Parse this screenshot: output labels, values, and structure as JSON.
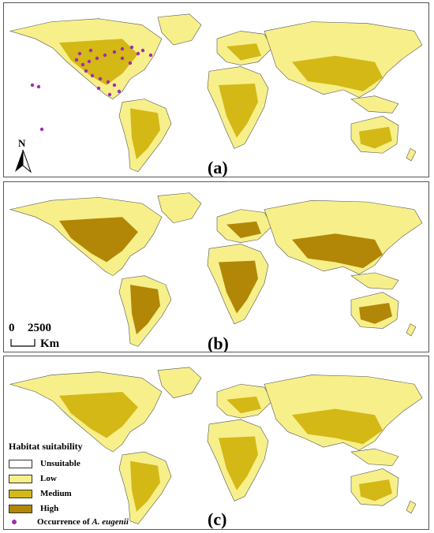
{
  "colors": {
    "unsuitable": "#ffffff",
    "low": "#f7ef8a",
    "medium": "#d4b816",
    "high": "#b28707",
    "occurrence": "#a22ab5",
    "border": "#555555"
  },
  "panels": [
    {
      "label": "(a)",
      "dominant": "medium"
    },
    {
      "label": "(b)",
      "dominant": "high"
    },
    {
      "label": "(c)",
      "dominant": "medium"
    }
  ],
  "north_arrow": {
    "label": "N"
  },
  "scale_bar": {
    "zero": "0",
    "distance": "2500",
    "unit": "Km"
  },
  "legend": {
    "title": "Habitat suitability",
    "items": [
      {
        "key": "unsuitable",
        "label": "Unsuitable"
      },
      {
        "key": "low",
        "label": "Low"
      },
      {
        "key": "medium",
        "label": "Medium"
      },
      {
        "key": "high",
        "label": "High"
      }
    ],
    "occurrence_prefix": "Occurrence of ",
    "occurrence_species": "A. eugenii"
  }
}
